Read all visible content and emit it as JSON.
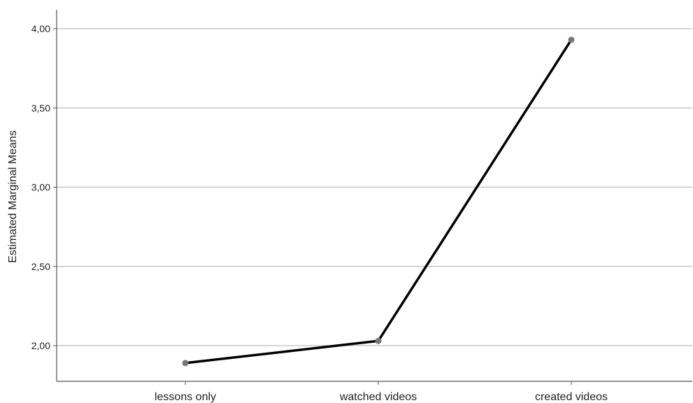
{
  "chart_data": {
    "type": "line",
    "title": "",
    "xlabel": "",
    "ylabel": "Estimated Marginal Means",
    "categories": [
      "lessons only",
      "watched videos",
      "created videos"
    ],
    "series": [
      {
        "values": [
          1.89,
          2.03,
          3.93
        ]
      }
    ],
    "ylim": [
      1.78,
      4.13
    ],
    "yticks": [
      2.0,
      2.5,
      3.0,
      3.5,
      4.0
    ],
    "ytick_labels": [
      "2,00",
      "2,50",
      "3,00",
      "3,50",
      "4,00"
    ],
    "grid": true,
    "legend": "none",
    "colors": {
      "line": "#000000",
      "marker": "#777777",
      "grid": "#c8c8c8",
      "axis": "#555555"
    }
  }
}
